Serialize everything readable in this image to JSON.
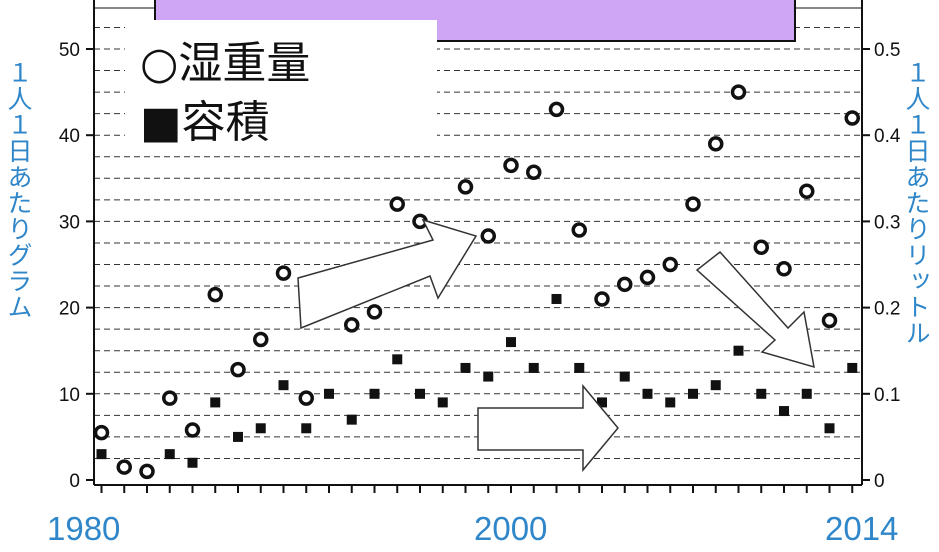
{
  "chart_data": {
    "type": "scatter",
    "x_ticks": [
      "1980",
      "2000",
      "2014"
    ],
    "left_axis": {
      "label": "１人１日あたりグラム",
      "ylim": [
        0,
        55
      ],
      "ticks": [
        "0",
        "10",
        "20",
        "30",
        "40",
        "50"
      ]
    },
    "right_axis": {
      "label": "１人１日あたりリットル",
      "ylim": [
        0,
        0.55
      ],
      "ticks": [
        "0",
        "0.1",
        "0.2",
        "0.3",
        "0.4",
        "0.5"
      ]
    },
    "legend": {
      "position": "top-left",
      "entries": [
        "○湿重量",
        "■容積"
      ]
    },
    "series": [
      {
        "name": "湿重量",
        "marker": "circle",
        "axis": "left",
        "points": [
          {
            "x": 1980,
            "y": 5.5
          },
          {
            "x": 1981,
            "y": 1.5
          },
          {
            "x": 1982,
            "y": 1.0
          },
          {
            "x": 1983,
            "y": 9.5
          },
          {
            "x": 1984,
            "y": 5.8
          },
          {
            "x": 1985,
            "y": 21.5
          },
          {
            "x": 1986,
            "y": 12.8
          },
          {
            "x": 1987,
            "y": 16.3
          },
          {
            "x": 1988,
            "y": 24.0
          },
          {
            "x": 1989,
            "y": 9.5
          },
          {
            "x": 1991,
            "y": 18.0
          },
          {
            "x": 1992,
            "y": 19.5
          },
          {
            "x": 1993,
            "y": 32.0
          },
          {
            "x": 1994,
            "y": 30.0
          },
          {
            "x": 1995,
            "y": 24.5
          },
          {
            "x": 1996,
            "y": 34.0
          },
          {
            "x": 1997,
            "y": 28.3
          },
          {
            "x": 1998,
            "y": 36.5
          },
          {
            "x": 1999,
            "y": 35.7
          },
          {
            "x": 2000,
            "y": 43.0
          },
          {
            "x": 2001,
            "y": 29.0
          },
          {
            "x": 2002,
            "y": 21.0
          },
          {
            "x": 2003,
            "y": 22.7
          },
          {
            "x": 2004,
            "y": 23.5
          },
          {
            "x": 2005,
            "y": 25.0
          },
          {
            "x": 2006,
            "y": 32.0
          },
          {
            "x": 2007,
            "y": 39.0
          },
          {
            "x": 2008,
            "y": 45.0
          },
          {
            "x": 2009,
            "y": 27.0
          },
          {
            "x": 2010,
            "y": 24.5
          },
          {
            "x": 2011,
            "y": 33.5
          },
          {
            "x": 2012,
            "y": 18.5
          },
          {
            "x": 2013,
            "y": 42.0
          }
        ]
      },
      {
        "name": "容積",
        "marker": "square",
        "axis": "right",
        "points": [
          {
            "x": 1980,
            "y": 0.03
          },
          {
            "x": 1983,
            "y": 0.03
          },
          {
            "x": 1984,
            "y": 0.02
          },
          {
            "x": 1985,
            "y": 0.09
          },
          {
            "x": 1986,
            "y": 0.05
          },
          {
            "x": 1987,
            "y": 0.06
          },
          {
            "x": 1988,
            "y": 0.11
          },
          {
            "x": 1989,
            "y": 0.06
          },
          {
            "x": 1990,
            "y": 0.1
          },
          {
            "x": 1991,
            "y": 0.07
          },
          {
            "x": 1992,
            "y": 0.1
          },
          {
            "x": 1993,
            "y": 0.14
          },
          {
            "x": 1994,
            "y": 0.1
          },
          {
            "x": 1995,
            "y": 0.09
          },
          {
            "x": 1996,
            "y": 0.13
          },
          {
            "x": 1997,
            "y": 0.12
          },
          {
            "x": 1998,
            "y": 0.16
          },
          {
            "x": 1999,
            "y": 0.13
          },
          {
            "x": 2000,
            "y": 0.21
          },
          {
            "x": 2001,
            "y": 0.13
          },
          {
            "x": 2002,
            "y": 0.09
          },
          {
            "x": 2003,
            "y": 0.12
          },
          {
            "x": 2004,
            "y": 0.1
          },
          {
            "x": 2005,
            "y": 0.09
          },
          {
            "x": 2006,
            "y": 0.1
          },
          {
            "x": 2007,
            "y": 0.11
          },
          {
            "x": 2008,
            "y": 0.15
          },
          {
            "x": 2009,
            "y": 0.1
          },
          {
            "x": 2010,
            "y": 0.08
          },
          {
            "x": 2011,
            "y": 0.1
          },
          {
            "x": 2012,
            "y": 0.06
          },
          {
            "x": 2013,
            "y": 0.13
          }
        ]
      }
    ],
    "grid": "dashed-horizontal",
    "colors": {
      "axis_label": "#2f86c9",
      "header_box": "#cfa6f5",
      "marker": "#111111"
    }
  }
}
